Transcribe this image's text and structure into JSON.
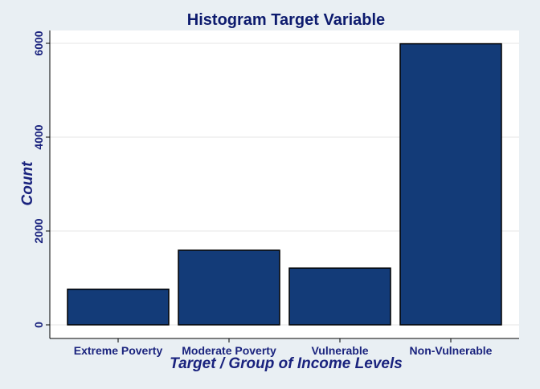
{
  "chart_data": {
    "type": "bar",
    "title": "Histogram Target Variable",
    "xlabel": "Target / Group of Income Levels",
    "ylabel": "Count",
    "categories": [
      "Extreme Poverty",
      "Moderate Poverty",
      "Vulnerable",
      "Non-Vulnerable"
    ],
    "values": [
      760,
      1590,
      1210,
      5990
    ],
    "yticks": [
      "0",
      "2000",
      "4000",
      "6000"
    ],
    "ylim": [
      0,
      6250
    ],
    "grid": true,
    "legend": "none",
    "colors": {
      "bar_fill": "#133b78",
      "bar_stroke": "#000000",
      "text": "#1a237e",
      "plot_bg": "#ffffff",
      "page_bg": "#e9eff3",
      "grid": "#e6e6e6"
    }
  }
}
